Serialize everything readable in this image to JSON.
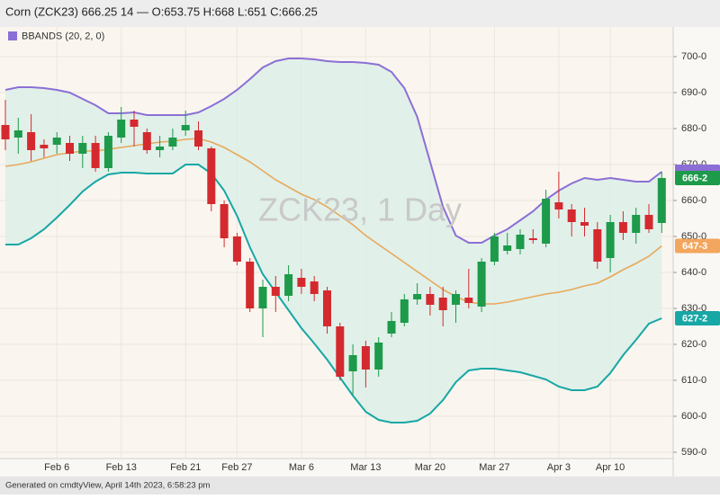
{
  "chart_data": {
    "type": "candlestick",
    "title": "Corn (ZCK23) 666.25 14 — O:653.75 H:668 L:651 C:666.25",
    "watermark": "ZCK23, 1 Day",
    "footer": "Generated on cmdtyView, April 14th 2023, 6:58:23 pm",
    "categories": [
      null,
      null,
      null,
      null,
      "Feb 6",
      null,
      null,
      null,
      null,
      "Feb 13",
      null,
      null,
      null,
      null,
      "Feb 21",
      null,
      null,
      null,
      "Feb 27",
      null,
      null,
      null,
      null,
      "Mar 6",
      null,
      null,
      null,
      null,
      "Mar 13",
      null,
      null,
      null,
      null,
      "Mar 20",
      null,
      null,
      null,
      null,
      "Mar 27",
      null,
      null,
      null,
      null,
      "Apr 3",
      null,
      null,
      null,
      "Apr 10",
      null,
      null,
      null,
      null
    ],
    "open": [
      681,
      677.5,
      679,
      675.5,
      675.5,
      676,
      673,
      676,
      669,
      677.5,
      682.5,
      679,
      674,
      675,
      679.5,
      679.5,
      674.5,
      659,
      650,
      643,
      630,
      636,
      633.5,
      638.5,
      637.5,
      635,
      625,
      612.5,
      619.5,
      613,
      623,
      626,
      632.5,
      634,
      633,
      631,
      633,
      630.5,
      643,
      646,
      646.5,
      649.5,
      648,
      659.5,
      657.5,
      654,
      652,
      644,
      654,
      651,
      656,
      653.75
    ],
    "high": [
      688,
      683,
      684,
      677,
      679,
      678,
      678,
      678,
      679,
      686,
      685,
      680,
      678,
      680,
      685,
      682,
      675,
      660,
      651,
      644,
      638,
      639,
      642,
      641,
      639,
      636,
      626,
      620,
      621,
      622,
      629,
      634,
      637,
      636,
      636,
      635,
      641,
      644,
      651,
      651,
      652,
      652,
      663,
      668,
      659,
      658,
      654,
      656,
      657,
      658,
      659,
      668
    ],
    "low": [
      674,
      673,
      671,
      672,
      673,
      671,
      669,
      668,
      668,
      676,
      675,
      673,
      672,
      674,
      678,
      674,
      657,
      647,
      642,
      629,
      622,
      629,
      632,
      634,
      632,
      623,
      610,
      606,
      608,
      611,
      622,
      625,
      631,
      628,
      625,
      626,
      630,
      629,
      642,
      645,
      645,
      648,
      647,
      655,
      650,
      650,
      641,
      640,
      649,
      648,
      651,
      651
    ],
    "close": [
      677,
      679.5,
      674,
      674.5,
      677.5,
      673,
      676,
      669,
      678,
      682.5,
      680.5,
      674,
      675,
      677.5,
      681,
      675,
      659,
      649.5,
      643,
      630,
      636,
      633.5,
      639.5,
      636,
      634,
      625,
      611,
      617,
      613,
      620.5,
      626.5,
      632.5,
      634,
      631,
      629.5,
      634,
      631.5,
      643,
      650,
      647.5,
      650.5,
      649,
      660.5,
      657.5,
      654,
      653,
      643,
      654,
      651,
      656,
      652,
      666.25
    ],
    "up_color": "#1d9a4a",
    "down_color": "#d42a2f",
    "bands": {
      "name": "BBANDS (20, 2, 0)",
      "color": "#8b6fd6",
      "fill": "#dcefe8",
      "upper_color": "#8b6fd6",
      "middle_color": "#e8a85a",
      "lower_color": "#17a7a5",
      "upper": [
        690.75,
        691.5,
        691.5,
        691.25,
        690.75,
        690,
        688.25,
        686.5,
        684.25,
        684.25,
        684.5,
        683.75,
        683.75,
        683.75,
        683.75,
        684.5,
        686.25,
        688.25,
        690.75,
        693.75,
        697,
        698.75,
        699.5,
        699.5,
        699.25,
        698.75,
        698.5,
        698.5,
        698.25,
        697.75,
        695.75,
        691.25,
        683.25,
        670.75,
        658.25,
        650.25,
        648.25,
        648.25,
        650.25,
        652,
        654.5,
        657,
        660.25,
        662.75,
        664.75,
        666.25,
        665.75,
        666.25,
        665.75,
        665.25,
        665.25,
        668
      ],
      "middle": [
        669.5,
        670,
        670.75,
        671.75,
        672.75,
        673.25,
        673.75,
        673.75,
        674.25,
        674.75,
        675.25,
        675.75,
        676.25,
        676.5,
        677,
        677.25,
        676.25,
        674.75,
        672.75,
        670.75,
        668.25,
        665.75,
        663.75,
        661.75,
        660.25,
        658.25,
        655.75,
        653.25,
        650.25,
        647.75,
        645.25,
        642.75,
        640.25,
        637.75,
        635.25,
        633.25,
        631.75,
        631.25,
        631.25,
        631.75,
        632.5,
        633.25,
        634,
        634.5,
        635.25,
        636.25,
        637,
        638.75,
        640.75,
        642.5,
        644.5,
        647.375
      ],
      "lower": [
        647.75,
        647.75,
        649.5,
        652,
        655.25,
        658.75,
        662.5,
        665.25,
        667.25,
        667.75,
        667.75,
        667.5,
        667.5,
        667.5,
        670,
        670,
        667.5,
        662.75,
        655.75,
        647,
        639.5,
        634.5,
        629.5,
        624.5,
        620.25,
        615.75,
        610.75,
        605.75,
        601.25,
        599,
        598.25,
        598.25,
        598.75,
        600.75,
        604.5,
        609.5,
        612.75,
        613.25,
        613.25,
        612.75,
        612.25,
        611.25,
        610.25,
        608.25,
        607.25,
        607.25,
        608.25,
        612,
        617,
        621.25,
        625.75,
        627.25
      ]
    },
    "price_labels": [
      {
        "value": 668,
        "color": "#8b6fd6"
      },
      {
        "value": 666.25,
        "label": "666-2",
        "color": "#1d9a4a"
      },
      {
        "value": 647.375,
        "label": "647-3",
        "color": "#f2a65e"
      },
      {
        "value": 627.25,
        "label": "627-2",
        "color": "#17a7a5"
      }
    ],
    "ylim": [
      588.25,
      708.25
    ],
    "yticks": [
      {
        "value": 590,
        "label": "590-0"
      },
      {
        "value": 600,
        "label": "600-0"
      },
      {
        "value": 610,
        "label": "610-0"
      },
      {
        "value": 620,
        "label": "620-0"
      },
      {
        "value": 630,
        "label": "630-0"
      },
      {
        "value": 640,
        "label": "640-0"
      },
      {
        "value": 650,
        "label": "650-0"
      },
      {
        "value": 660,
        "label": "660-0"
      },
      {
        "value": 670,
        "label": "670-0"
      },
      {
        "value": 680,
        "label": "680-0"
      },
      {
        "value": 690,
        "label": "690-0"
      },
      {
        "value": 700,
        "label": "700-0"
      }
    ],
    "grid": true
  }
}
